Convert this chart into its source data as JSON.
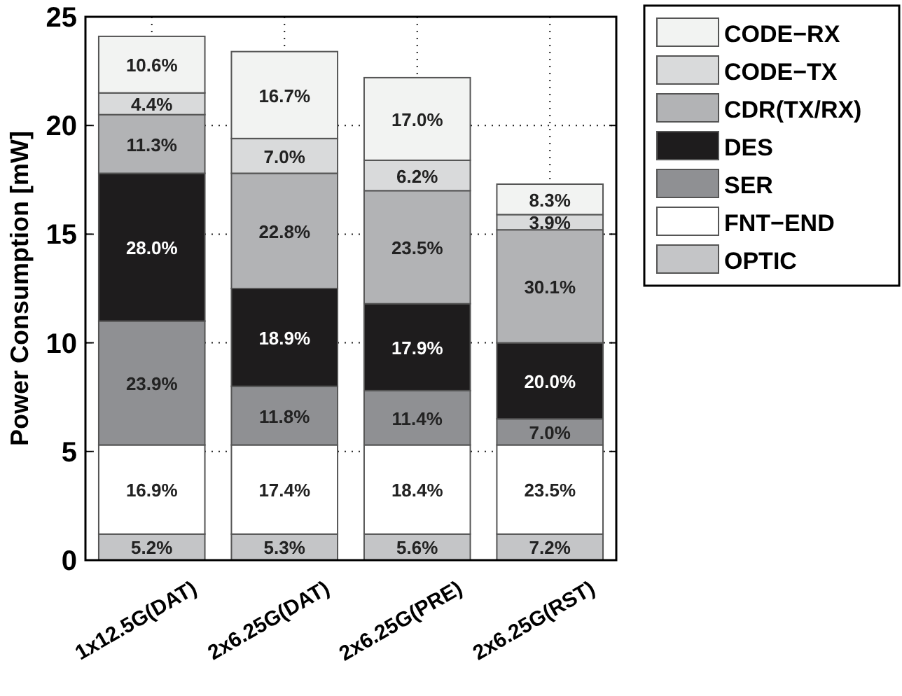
{
  "chart_data": {
    "type": "bar",
    "stacked": true,
    "ylabel": "Power Consumption [mW]",
    "categories": [
      "1x12.5G(DAT)",
      "2x6.25G(DAT)",
      "2x6.25G(PRE)",
      "2x6.25G(RST)"
    ],
    "ylim": [
      0,
      25
    ],
    "yticks": [
      0,
      5,
      10,
      15,
      20,
      25
    ],
    "grid": true,
    "legend": "top right",
    "series": [
      {
        "name": "OPTIC",
        "color": "#c4c5c7",
        "values": [
          1.2,
          1.2,
          1.2,
          1.2
        ]
      },
      {
        "name": "FNT−END",
        "color": "#ffffff",
        "values": [
          4.1,
          4.1,
          4.1,
          4.1
        ]
      },
      {
        "name": "SER",
        "color": "#8f9093",
        "values": [
          5.7,
          2.7,
          2.5,
          1.2
        ]
      },
      {
        "name": "DES",
        "color": "#1e1c1d",
        "values": [
          6.8,
          4.5,
          4.0,
          3.5
        ]
      },
      {
        "name": "CDR(TX/RX)",
        "color": "#b2b3b5",
        "values": [
          2.7,
          5.3,
          5.2,
          5.2
        ]
      },
      {
        "name": "CODE−TX",
        "color": "#d9dadb",
        "values": [
          1.0,
          1.6,
          1.4,
          0.7
        ]
      },
      {
        "name": "CODE−RX",
        "color": "#f2f3f2",
        "values": [
          2.6,
          4.0,
          3.8,
          1.4
        ]
      }
    ],
    "annotations": [
      "5.2%",
      "5.3%",
      "5.6%",
      "7.2%",
      "16.9%",
      "17.4%",
      "18.4%",
      "23.5%",
      "23.9%",
      "11.8%",
      "11.4%",
      "7.0%",
      "28.0%",
      "18.9%",
      "17.9%",
      "20.0%",
      "11.3%",
      "22.8%",
      "23.5%",
      "30.1%",
      "4.4%",
      "7.0%",
      "6.2%",
      "3.9%",
      "10.6%",
      "16.7%",
      "17.0%",
      "8.3%"
    ]
  }
}
